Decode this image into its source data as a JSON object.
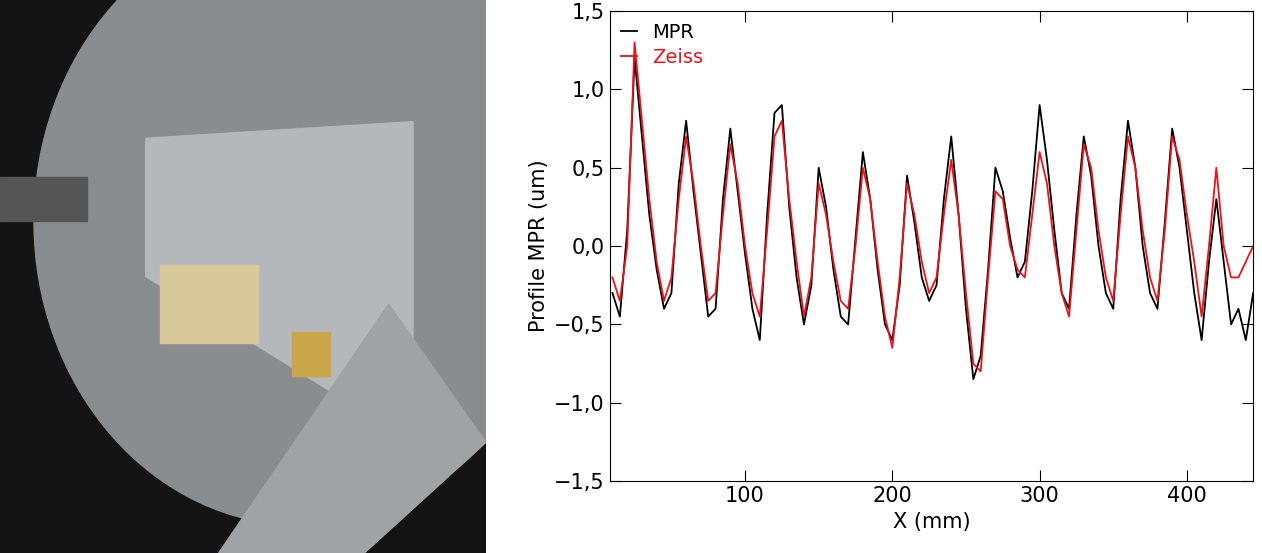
{
  "chart_data": {
    "type": "line",
    "xlabel": "X (mm)",
    "ylabel": "Profile MPR (um)",
    "x": [
      10,
      15,
      20,
      25,
      30,
      35,
      40,
      45,
      50,
      55,
      60,
      65,
      70,
      75,
      80,
      85,
      90,
      95,
      100,
      105,
      110,
      115,
      120,
      125,
      130,
      135,
      140,
      145,
      150,
      155,
      160,
      165,
      170,
      175,
      180,
      185,
      190,
      195,
      200,
      205,
      210,
      215,
      220,
      225,
      230,
      235,
      240,
      245,
      250,
      255,
      260,
      265,
      270,
      275,
      280,
      285,
      290,
      295,
      300,
      305,
      310,
      315,
      320,
      325,
      330,
      335,
      340,
      345,
      350,
      355,
      360,
      365,
      370,
      375,
      380,
      385,
      390,
      395,
      400,
      405,
      410,
      415,
      420,
      425,
      430,
      435,
      440,
      445
    ],
    "series": [
      {
        "name": "MPR",
        "color": "#000000",
        "line_style": "solid",
        "values": [
          -0.3,
          -0.45,
          0.1,
          1.2,
          0.7,
          0.2,
          -0.15,
          -0.4,
          -0.3,
          0.4,
          0.8,
          0.35,
          -0.05,
          -0.45,
          -0.4,
          0.3,
          0.75,
          0.35,
          -0.05,
          -0.4,
          -0.6,
          0.2,
          0.85,
          0.9,
          0.25,
          -0.2,
          -0.5,
          -0.25,
          0.5,
          0.25,
          -0.15,
          -0.45,
          -0.5,
          0.05,
          0.6,
          0.3,
          -0.15,
          -0.5,
          -0.6,
          -0.25,
          0.45,
          0.15,
          -0.2,
          -0.35,
          -0.25,
          0.3,
          0.7,
          0.2,
          -0.4,
          -0.85,
          -0.7,
          -0.15,
          0.5,
          0.35,
          0.05,
          -0.2,
          -0.1,
          0.35,
          0.9,
          0.55,
          0.1,
          -0.3,
          -0.4,
          0.2,
          0.7,
          0.45,
          0.0,
          -0.3,
          -0.4,
          0.3,
          0.8,
          0.5,
          0.0,
          -0.3,
          -0.4,
          0.15,
          0.75,
          0.5,
          0.1,
          -0.3,
          -0.6,
          -0.1,
          0.3,
          -0.1,
          -0.5,
          -0.4,
          -0.6,
          -0.3
        ]
      },
      {
        "name": "Zeiss",
        "color": "#e8141c",
        "line_style": "solid",
        "values": [
          -0.2,
          -0.35,
          0.0,
          1.3,
          0.8,
          0.3,
          -0.1,
          -0.35,
          -0.2,
          0.3,
          0.7,
          0.4,
          0.0,
          -0.35,
          -0.3,
          0.2,
          0.65,
          0.4,
          0.0,
          -0.3,
          -0.45,
          0.1,
          0.7,
          0.8,
          0.3,
          -0.1,
          -0.45,
          -0.2,
          0.4,
          0.2,
          -0.1,
          -0.35,
          -0.4,
          0.0,
          0.5,
          0.3,
          -0.1,
          -0.45,
          -0.65,
          -0.2,
          0.4,
          0.2,
          -0.1,
          -0.3,
          -0.2,
          0.2,
          0.55,
          0.2,
          -0.3,
          -0.75,
          -0.8,
          -0.2,
          0.35,
          0.3,
          0.0,
          -0.15,
          -0.2,
          0.2,
          0.6,
          0.4,
          0.0,
          -0.3,
          -0.45,
          0.1,
          0.65,
          0.5,
          0.1,
          -0.2,
          -0.35,
          0.2,
          0.7,
          0.5,
          0.1,
          -0.2,
          -0.35,
          0.1,
          0.7,
          0.55,
          0.2,
          -0.1,
          -0.45,
          0.0,
          0.5,
          0.0,
          -0.2,
          -0.2,
          -0.1,
          0.0
        ]
      }
    ],
    "xlim": [
      8,
      445
    ],
    "xticks": [
      100,
      200,
      300,
      400
    ],
    "ylim": [
      -1.5,
      1.5
    ],
    "yticks": [
      {
        "value": -1.5,
        "label": "−1,5"
      },
      {
        "value": -1.0,
        "label": "−1,0"
      },
      {
        "value": -0.5,
        "label": "−0,5"
      },
      {
        "value": 0.0,
        "label": "0,0"
      },
      {
        "value": 0.5,
        "label": "0,5"
      },
      {
        "value": 1.0,
        "label": "1,0"
      },
      {
        "value": 1.5,
        "label": "1,5"
      }
    ],
    "legend": "upper left",
    "grid": false
  }
}
